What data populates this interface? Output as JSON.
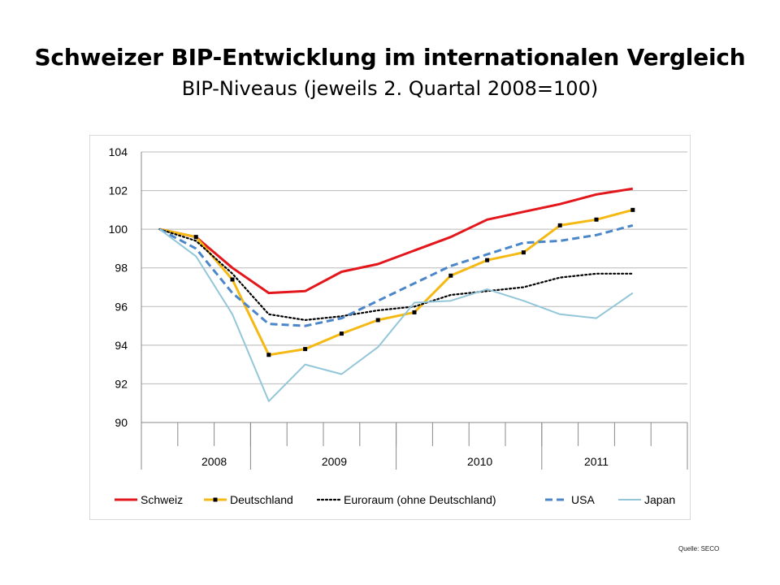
{
  "slide": {
    "title": "Schweizer BIP-Entwicklung im internationalen Vergleich",
    "subtitle": "BIP-Niveaus (jeweils 2. Quartal 2008=100)",
    "source": "Quelle: SECO"
  },
  "chart_data": {
    "type": "line",
    "title": "Schweizer BIP-Entwicklung im internationalen Vergleich",
    "subtitle": "BIP-Niveaus (jeweils 2. Quartal 2008=100)",
    "xlabel": "",
    "ylabel": "",
    "ylim": [
      90,
      104
    ],
    "yticks": [
      90,
      92,
      94,
      96,
      98,
      100,
      102,
      104
    ],
    "y_tick_labels": [
      "90",
      "92",
      "94",
      "96",
      "98",
      "100",
      "102",
      "104"
    ],
    "x_quarters": [
      "2008 Q2",
      "2008 Q3",
      "2008 Q4",
      "2009 Q1",
      "2009 Q2",
      "2009 Q3",
      "2009 Q4",
      "2010 Q1",
      "2010 Q2",
      "2010 Q3",
      "2010 Q4",
      "2011 Q1",
      "2011 Q2",
      "2011 Q3"
    ],
    "year_labels": [
      "2008",
      "2009",
      "2010",
      "2011"
    ],
    "grid": true,
    "legend_position": "bottom",
    "series": [
      {
        "name": "Schweiz",
        "color": "#e3161b",
        "style": "solid",
        "values": [
          100.0,
          99.6,
          98.0,
          96.7,
          96.8,
          97.8,
          98.2,
          98.9,
          99.6,
          100.5,
          100.9,
          101.3,
          101.8,
          102.1
        ]
      },
      {
        "name": "Deutschland",
        "color": "#f5b914",
        "style": "solid-markers",
        "values": [
          100.0,
          99.6,
          97.4,
          93.5,
          93.8,
          94.6,
          95.3,
          95.7,
          97.6,
          98.4,
          98.8,
          100.2,
          100.5,
          101.0
        ]
      },
      {
        "name": "Euroraum (ohne Deutschland)",
        "color": "#000000",
        "style": "dotted",
        "values": [
          100.0,
          99.4,
          97.7,
          95.6,
          95.3,
          95.5,
          95.8,
          96.0,
          96.6,
          96.8,
          97.0,
          97.5,
          97.7,
          97.7
        ]
      },
      {
        "name": "USA",
        "color": "#4a86c8",
        "style": "dashed",
        "values": [
          100.0,
          99.0,
          96.7,
          95.1,
          95.0,
          95.4,
          96.3,
          97.2,
          98.1,
          98.7,
          99.3,
          99.4,
          99.7,
          100.2
        ]
      },
      {
        "name": "Japan",
        "color": "#93c6d9",
        "style": "solid",
        "values": [
          100.0,
          98.6,
          95.6,
          91.1,
          93.0,
          92.5,
          93.9,
          96.2,
          96.3,
          96.9,
          96.3,
          95.6,
          95.4,
          96.7
        ]
      }
    ]
  }
}
